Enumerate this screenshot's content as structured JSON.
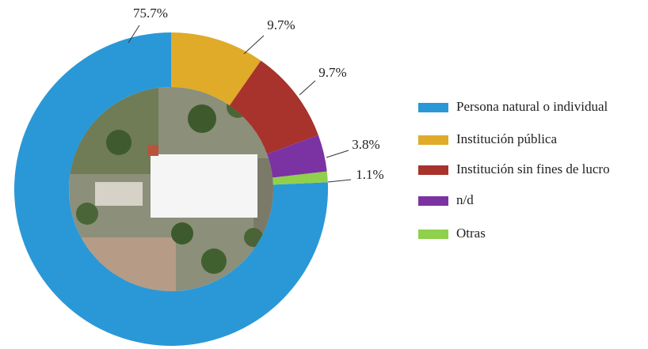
{
  "chart_data": {
    "type": "donut",
    "categories": [
      "Persona natural o individual",
      "Institución pública",
      "Institución sin fines de lucro",
      "n/d",
      "Otras"
    ],
    "values": [
      75.7,
      9.7,
      9.7,
      3.8,
      1.1
    ],
    "value_labels": [
      "75.7%",
      "9.7%",
      "9.7%",
      "3.8%",
      "1.1%"
    ],
    "colors": [
      "#2a98d6",
      "#e0ab28",
      "#a8322c",
      "#7b33a3",
      "#8fd04c"
    ],
    "legend": "right"
  }
}
